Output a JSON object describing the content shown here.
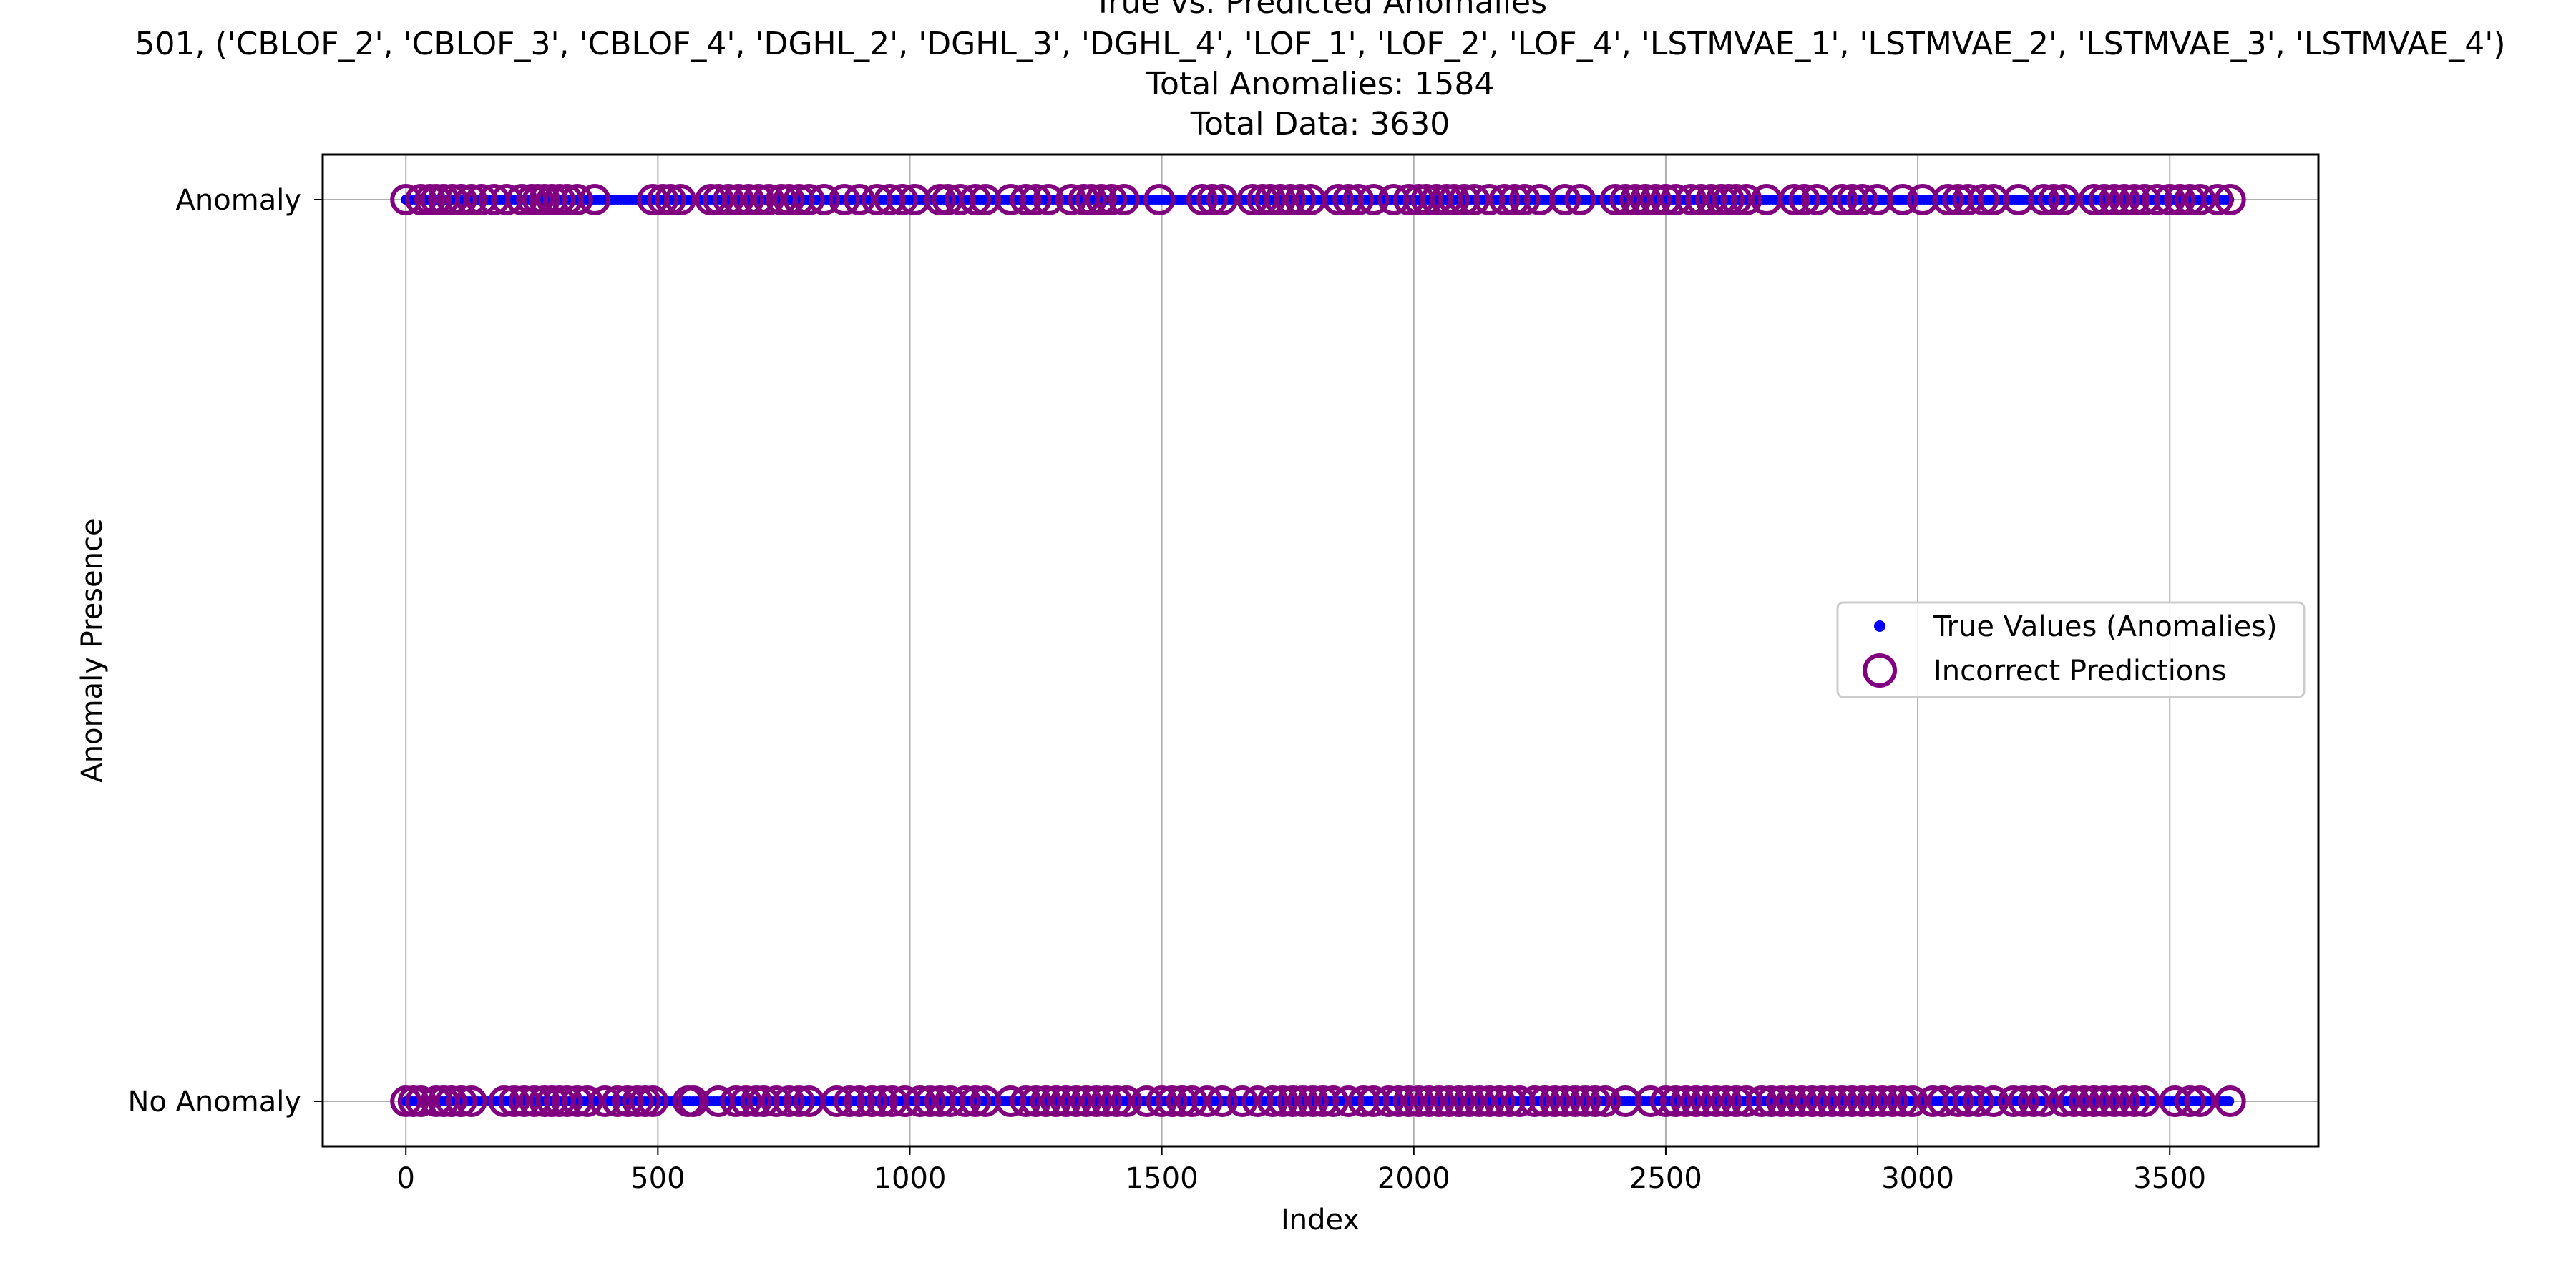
{
  "chart_data": {
    "type": "scatter",
    "title_lines": [
      "True vs. Predicted Anomalies",
      "501, ('CBLOF_2', 'CBLOF_3', 'CBLOF_4', 'DGHL_2', 'DGHL_3', 'DGHL_4', 'LOF_1', 'LOF_2', 'LOF_4', 'LSTMVAE_1', 'LSTMVAE_2', 'LSTMVAE_3', 'LSTMVAE_4')",
      "Total Anomalies: 1584",
      "Total Data: 3630"
    ],
    "xlabel": "Index",
    "ylabel": "Anomaly Presence",
    "xlim": [
      -165,
      3795
    ],
    "ylim": [
      -0.05,
      1.05
    ],
    "x_ticks": [
      0,
      500,
      1000,
      1500,
      2000,
      2500,
      3000,
      3500
    ],
    "x_tick_labels": [
      "0",
      "500",
      "1000",
      "1500",
      "2000",
      "2500",
      "3000",
      "3500"
    ],
    "y_ticks": [
      0,
      1
    ],
    "y_tick_labels": [
      "No Anomaly",
      "Anomaly"
    ],
    "grid": true,
    "legend_position": "center-right",
    "colors": {
      "true_values": "#0000ff",
      "incorrect": "#800080"
    },
    "series": [
      {
        "name": "True Values (Anomalies)",
        "marker": "dot",
        "points": [
          {
            "x_range": [
              0,
              3620
            ],
            "y": 1
          },
          {
            "x_range": [
              0,
              3620
            ],
            "y": 0
          }
        ]
      },
      {
        "name": "Incorrect Predictions",
        "marker": "open-circle",
        "y1_x": [
          0,
          30,
          48,
          60,
          75,
          92,
          110,
          130,
          150,
          175,
          200,
          230,
          250,
          262,
          275,
          290,
          305,
          320,
          340,
          375,
          490,
          510,
          525,
          545,
          605,
          620,
          640,
          660,
          680,
          700,
          720,
          745,
          760,
          780,
          800,
          830,
          870,
          900,
          935,
          960,
          985,
          1010,
          1060,
          1075,
          1100,
          1130,
          1150,
          1200,
          1230,
          1250,
          1275,
          1320,
          1345,
          1360,
          1380,
          1400,
          1425,
          1495,
          1580,
          1600,
          1620,
          1680,
          1700,
          1715,
          1735,
          1755,
          1775,
          1795,
          1850,
          1870,
          1890,
          1920,
          1960,
          1990,
          2010,
          2025,
          2045,
          2065,
          2080,
          2100,
          2120,
          2150,
          2180,
          2200,
          2220,
          2250,
          2300,
          2330,
          2400,
          2420,
          2440,
          2460,
          2480,
          2500,
          2520,
          2550,
          2570,
          2590,
          2610,
          2625,
          2640,
          2660,
          2700,
          2755,
          2775,
          2800,
          2850,
          2870,
          2890,
          2920,
          2970,
          3010,
          3060,
          3080,
          3100,
          3130,
          3150,
          3200,
          3250,
          3270,
          3290,
          3350,
          3370,
          3390,
          3410,
          3430,
          3450,
          3475,
          3500,
          3520,
          3540,
          3560,
          3595,
          3620
        ],
        "y0_x": [
          0,
          15,
          30,
          60,
          75,
          90,
          110,
          130,
          195,
          215,
          235,
          255,
          275,
          290,
          305,
          320,
          340,
          360,
          395,
          420,
          440,
          460,
          475,
          490,
          560,
          570,
          620,
          655,
          675,
          695,
          710,
          735,
          760,
          780,
          800,
          855,
          880,
          900,
          925,
          945,
          965,
          990,
          1020,
          1040,
          1060,
          1080,
          1110,
          1130,
          1150,
          1200,
          1230,
          1250,
          1270,
          1290,
          1310,
          1330,
          1350,
          1370,
          1390,
          1410,
          1430,
          1470,
          1500,
          1520,
          1540,
          1560,
          1590,
          1620,
          1660,
          1690,
          1720,
          1740,
          1760,
          1780,
          1800,
          1820,
          1840,
          1870,
          1900,
          1920,
          1950,
          1970,
          1990,
          2010,
          2030,
          2050,
          2070,
          2090,
          2110,
          2130,
          2150,
          2170,
          2190,
          2210,
          2240,
          2260,
          2280,
          2300,
          2320,
          2340,
          2360,
          2380,
          2420,
          2470,
          2500,
          2520,
          2540,
          2560,
          2580,
          2600,
          2620,
          2640,
          2660,
          2690,
          2710,
          2730,
          2750,
          2770,
          2790,
          2810,
          2830,
          2850,
          2870,
          2890,
          2910,
          2930,
          2950,
          2970,
          2990,
          3030,
          3050,
          3080,
          3100,
          3120,
          3150,
          3190,
          3210,
          3230,
          3250,
          3290,
          3310,
          3330,
          3350,
          3370,
          3390,
          3410,
          3430,
          3450,
          3510,
          3540,
          3560,
          3620
        ]
      }
    ]
  }
}
